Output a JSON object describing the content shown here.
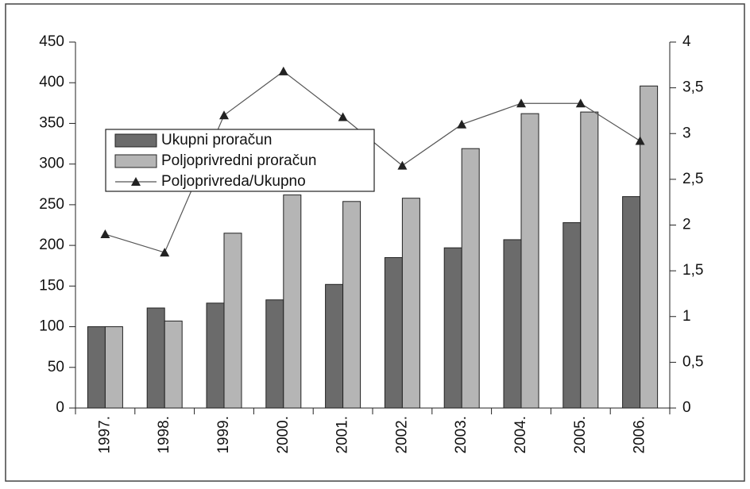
{
  "chart_data": {
    "type": "bar-line",
    "categories": [
      "1997.",
      "1998.",
      "1999.",
      "2000.",
      "2001.",
      "2002.",
      "2003.",
      "2004.",
      "2005.",
      "2006."
    ],
    "series": [
      {
        "name": "Ukupni proračun",
        "type": "bar",
        "color": "#6b6b6b",
        "values": [
          100,
          123,
          129,
          133,
          152,
          185,
          197,
          207,
          228,
          260
        ]
      },
      {
        "name": "Poljoprivredni proračun",
        "type": "bar",
        "color": "#b5b5b5",
        "values": [
          100,
          107,
          215,
          262,
          254,
          258,
          319,
          362,
          364,
          396
        ]
      },
      {
        "name": "Poljoprivreda/Ukupno",
        "type": "line",
        "axis": "y2",
        "color": "#555555",
        "values": [
          1.9,
          1.7,
          3.2,
          3.68,
          3.18,
          2.65,
          3.1,
          3.33,
          3.33,
          2.92
        ]
      }
    ],
    "ylim": [
      0,
      450
    ],
    "yticks": [
      0,
      50,
      100,
      150,
      200,
      250,
      300,
      350,
      400,
      450
    ],
    "y2lim": [
      0,
      4
    ],
    "y2ticks": [
      0,
      {
        "value": 0.5,
        "label": "0,5"
      },
      1,
      {
        "value": 1.5,
        "label": "1,5"
      },
      2,
      {
        "value": 2.5,
        "label": "2,5"
      },
      3,
      {
        "value": 3.5,
        "label": "3,5"
      },
      4
    ],
    "legend": "upper left"
  }
}
